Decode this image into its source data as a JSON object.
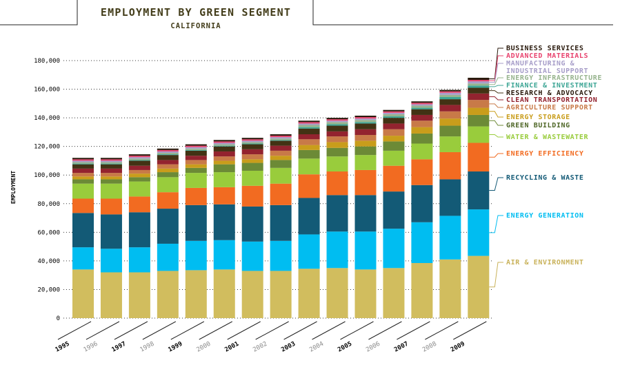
{
  "chart_data": {
    "type": "bar",
    "stacked": true,
    "title": "EMPLOYMENT BY GREEN SEGMENT",
    "subtitle": "CALIFORNIA",
    "ylabel": "EMPLOYMENT",
    "xlabel": "",
    "ylim": [
      0,
      180000
    ],
    "yticks": [
      0,
      20000,
      40000,
      60000,
      80000,
      100000,
      120000,
      140000,
      160000,
      180000
    ],
    "ytick_labels": [
      "0",
      "20,000",
      "40,000",
      "60,000",
      "80,000",
      "100,000",
      "120,000",
      "140,000",
      "160,000",
      "180,000"
    ],
    "grid": "horizontal dotted",
    "categories": [
      "1995",
      "1996",
      "1997",
      "1998",
      "1999",
      "2000",
      "2001",
      "2002",
      "2003",
      "2004",
      "2005",
      "2006",
      "2007",
      "2008",
      "2009"
    ],
    "category_emphasis": [
      "bold",
      "light",
      "bold",
      "light",
      "bold",
      "light",
      "bold",
      "light",
      "bold",
      "light",
      "bold",
      "light",
      "bold",
      "light",
      "bold"
    ],
    "series": [
      {
        "name": "AIR & ENVIRONMENT",
        "color": "#d1bd5e",
        "values": [
          34000,
          32000,
          32000,
          33000,
          33500,
          34000,
          33000,
          33000,
          34500,
          35000,
          34000,
          35000,
          38500,
          41000,
          43500
        ]
      },
      {
        "name": "ENERGY GENERATION",
        "color": "#00bdf1",
        "values": [
          15500,
          16500,
          17500,
          19000,
          20500,
          20500,
          20500,
          21000,
          24000,
          25500,
          26500,
          27500,
          28500,
          30500,
          32500
        ]
      },
      {
        "name": "RECYCLING & WASTE",
        "color": "#135a76",
        "values": [
          24000,
          24000,
          24500,
          24500,
          25000,
          25000,
          24500,
          25000,
          25500,
          25500,
          25500,
          26000,
          26000,
          25500,
          26500
        ]
      },
      {
        "name": "ENERGY EFFICIENCY",
        "color": "#f26b21",
        "values": [
          10000,
          11000,
          11000,
          11500,
          12000,
          12000,
          14500,
          15000,
          16500,
          16500,
          17500,
          18000,
          18000,
          19000,
          20000
        ]
      },
      {
        "name": "WATER & WASTEWATER",
        "color": "#99cc3c",
        "values": [
          10500,
          10500,
          10500,
          10500,
          10500,
          10500,
          10500,
          11000,
          11000,
          10500,
          10500,
          10500,
          11000,
          11000,
          11500
        ]
      },
      {
        "name": "GREEN BUILDING",
        "color": "#6c8a36",
        "values": [
          3000,
          3000,
          3000,
          3500,
          3500,
          5500,
          5500,
          5500,
          6000,
          6000,
          6000,
          6500,
          7000,
          7500,
          8000
        ]
      },
      {
        "name": "ENERGY STORAGE",
        "color": "#c99d1b",
        "values": [
          2000,
          2000,
          2500,
          2500,
          2500,
          2500,
          2500,
          3000,
          3500,
          4000,
          4000,
          4000,
          4500,
          5000,
          5000
        ]
      },
      {
        "name": "AGRICULTURE SUPPORT",
        "color": "#c87a48",
        "values": [
          2500,
          2500,
          2500,
          3000,
          3000,
          3000,
          3500,
          3500,
          4000,
          4000,
          4000,
          4500,
          4500,
          5000,
          5500
        ]
      },
      {
        "name": "CLEAN TRANSPORTATION",
        "color": "#93232f",
        "values": [
          3000,
          3000,
          3000,
          3000,
          3000,
          3500,
          3500,
          3500,
          3500,
          3500,
          4000,
          4000,
          4000,
          4500,
          4500
        ]
      },
      {
        "name": "RESEARCH & ADVOCACY",
        "color": "#423214",
        "values": [
          3000,
          3000,
          3500,
          3500,
          3500,
          3500,
          3500,
          3500,
          4000,
          4000,
          4000,
          4000,
          4000,
          4000,
          4000
        ]
      },
      {
        "name": "FINANCE & INVESTMENT",
        "color": "#3ca595",
        "values": [
          500,
          500,
          500,
          500,
          500,
          500,
          500,
          500,
          1000,
          1000,
          1000,
          1000,
          1000,
          1500,
          1500
        ]
      },
      {
        "name": "ENERGY INFRASTRUCTURE",
        "color": "#97b48e",
        "values": [
          1000,
          1000,
          1000,
          1000,
          1000,
          1000,
          1000,
          1000,
          1500,
          1500,
          1500,
          1500,
          1500,
          1500,
          1500
        ]
      },
      {
        "name": "MANUFACTURING & INDUSTRIAL SUPPORT",
        "color": "#a79ec9",
        "values": [
          1000,
          1000,
          1000,
          1000,
          1000,
          1000,
          1000,
          1000,
          1000,
          1000,
          1000,
          1000,
          1000,
          1500,
          1500
        ]
      },
      {
        "name": "ADVANCED MATERIALS",
        "color": "#e8436e",
        "values": [
          1000,
          1000,
          1000,
          1000,
          1000,
          1000,
          1000,
          1000,
          1000,
          1000,
          1000,
          1000,
          1000,
          1000,
          1000
        ]
      },
      {
        "name": "BUSINESS SERVICES",
        "color": "#2a1a0d",
        "values": [
          1000,
          1000,
          1000,
          1000,
          1000,
          1000,
          1000,
          1000,
          1000,
          1000,
          1000,
          1000,
          1000,
          1000,
          1500
        ]
      }
    ],
    "legend": {
      "placement": "right",
      "order_top_to_bottom": [
        "BUSINESS SERVICES",
        "ADVANCED MATERIALS",
        "MANUFACTURING & INDUSTRIAL SUPPORT",
        "ENERGY INFRASTRUCTURE",
        "FINANCE & INVESTMENT",
        "RESEARCH & ADVOCACY",
        "CLEAN TRANSPORTATION",
        "AGRICULTURE SUPPORT",
        "ENERGY STORAGE",
        "GREEN BUILDING",
        "WATER & WASTEWATER",
        "ENERGY EFFICIENCY",
        "RECYCLING & WASTE",
        "ENERGY GENERATION",
        "AIR & ENVIRONMENT"
      ],
      "label_lines": {
        "MANUFACTURING & INDUSTRIAL SUPPORT": [
          "MANUFACTURING &",
          "INDUSTRIAL SUPPORT"
        ]
      },
      "label_colors": {
        "BUSINESS SERVICES": "#2a1a0d",
        "ADVANCED MATERIALS": "#e8436e",
        "MANUFACTURING & INDUSTRIAL SUPPORT": "#a79ec9",
        "ENERGY INFRASTRUCTURE": "#97b48e",
        "FINANCE & INVESTMENT": "#3ca595",
        "RESEARCH & ADVOCACY": "#2a1a0d",
        "CLEAN TRANSPORTATION": "#93232f",
        "AGRICULTURE SUPPORT": "#c87a48",
        "ENERGY STORAGE": "#c99d1b",
        "GREEN BUILDING": "#4e6626",
        "WATER & WASTEWATER": "#99cc3c",
        "ENERGY EFFICIENCY": "#f26b21",
        "RECYCLING & WASTE": "#135a76",
        "ENERGY GENERATION": "#00bdf1",
        "AIR & ENVIRONMENT": "#c9b25a"
      }
    }
  },
  "colors": {
    "title": "#433d1a",
    "axis_text": "#000000",
    "light_year": "#8a8a8a",
    "frame": "#222222"
  }
}
